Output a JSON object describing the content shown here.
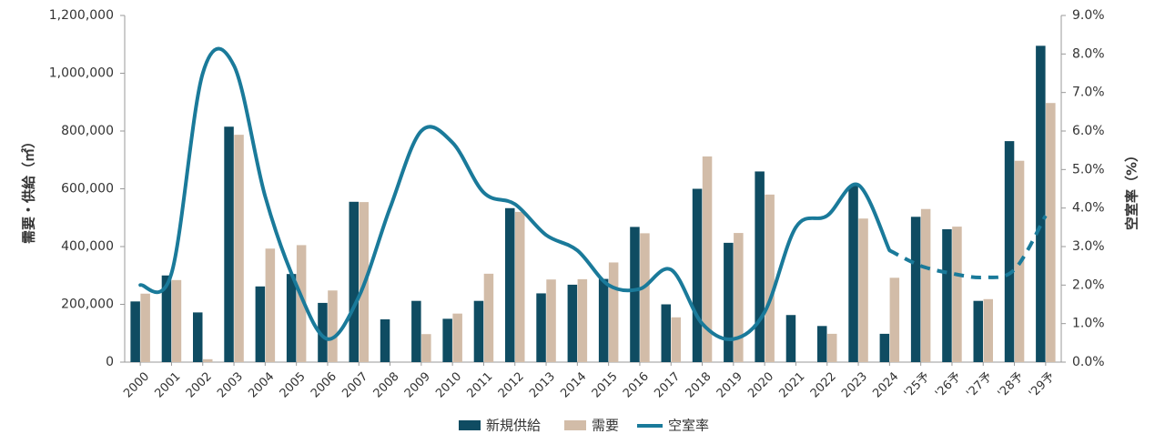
{
  "chart_data": {
    "type": "bar",
    "categories": [
      "2000",
      "2001",
      "2002",
      "2003",
      "2004",
      "2005",
      "2006",
      "2007",
      "2008",
      "2009",
      "2010",
      "2011",
      "2012",
      "2013",
      "2014",
      "2015",
      "2016",
      "2017",
      "2018",
      "2019",
      "2020",
      "2021",
      "2022",
      "2023",
      "2024",
      "'25予",
      "'26予",
      "'27予",
      "'28予",
      "'29予"
    ],
    "series": [
      {
        "name": "新規供給",
        "kind": "bar",
        "axis": "left",
        "color": "#0f4c62",
        "values": [
          210000,
          300000,
          172000,
          815000,
          262000,
          305000,
          205000,
          555000,
          148000,
          212000,
          150000,
          212000,
          533000,
          238000,
          268000,
          288000,
          468000,
          200000,
          600000,
          413000,
          660000,
          163000,
          125000,
          610000,
          98000,
          503000,
          460000,
          212000,
          765000,
          1095000
        ]
      },
      {
        "name": "需要",
        "kind": "bar",
        "axis": "left",
        "color": "#d2bca8",
        "values": [
          237000,
          284000,
          10000,
          787000,
          393000,
          405000,
          248000,
          554000,
          0,
          97000,
          168000,
          306000,
          520000,
          286000,
          287000,
          345000,
          446000,
          155000,
          712000,
          447000,
          580000,
          0,
          98000,
          497000,
          292000,
          530000,
          469000,
          218000,
          697000,
          897000
        ]
      },
      {
        "name": "空室率",
        "kind": "line",
        "axis": "right",
        "color": "#1a7a9a",
        "values": [
          2.0,
          2.3,
          7.5,
          7.7,
          4.3,
          2.0,
          0.6,
          1.7,
          4.0,
          6.0,
          5.7,
          4.4,
          4.1,
          3.3,
          2.9,
          2.0,
          1.9,
          2.4,
          1.0,
          0.6,
          1.3,
          3.5,
          3.8,
          4.6,
          2.9,
          2.5,
          2.3,
          2.2,
          2.4,
          3.8
        ],
        "forecast_from_index": 24
      }
    ],
    "ylabel": "需要・供給（㎡）",
    "y2label": "空室率（%）",
    "ylim": [
      0,
      1200000
    ],
    "y2lim": [
      0,
      9.0
    ],
    "yticks": [
      "0",
      "200,000",
      "400,000",
      "600,000",
      "800,000",
      "1,000,000",
      "1,200,000"
    ],
    "y2ticks": [
      "0.0%",
      "1.0%",
      "2.0%",
      "3.0%",
      "4.0%",
      "5.0%",
      "6.0%",
      "7.0%",
      "8.0%",
      "9.0%"
    ],
    "grid": false,
    "legend": "bottom",
    "legend_entries": [
      "新規供給",
      "需要",
      "空室率"
    ]
  }
}
